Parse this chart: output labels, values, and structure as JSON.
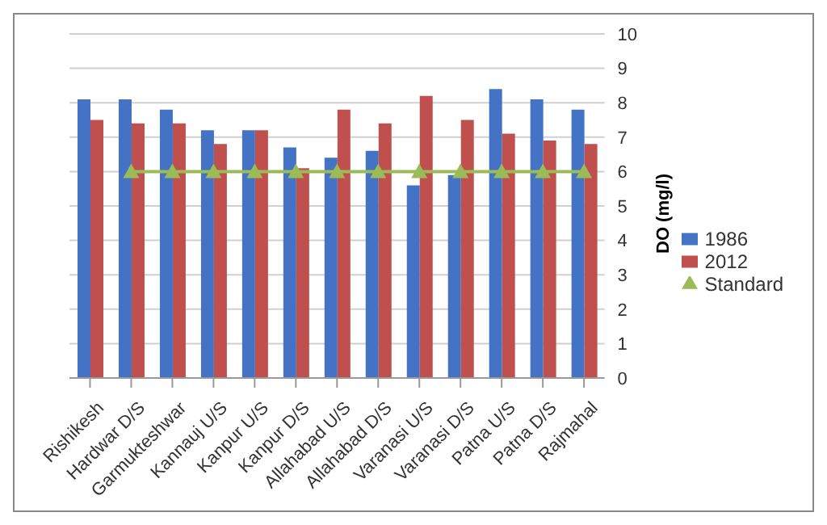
{
  "chart_data": {
    "type": "bar",
    "ylabel": "DO (mg/l)",
    "categories": [
      "Rishikesh",
      "Hardwar D/S",
      "Garmukteshwar",
      "Kannauj U/S",
      "Kanpur U/S",
      "Kanpur D/S",
      "Allahabad U/S",
      "Allahabad D/S",
      "Varanasi U/S",
      "Varanasi D/S",
      "Patna U/S",
      "Patna D/S",
      "Rajmahal"
    ],
    "series": [
      {
        "name": "1986",
        "color": "#4472c4",
        "values": [
          8.1,
          8.1,
          7.8,
          7.2,
          7.2,
          6.7,
          6.4,
          6.6,
          5.6,
          5.9,
          8.4,
          8.1,
          7.8
        ]
      },
      {
        "name": "2012",
        "color": "#c0504d",
        "values": [
          7.5,
          7.4,
          7.4,
          6.8,
          7.2,
          6.1,
          7.8,
          7.4,
          8.2,
          7.5,
          7.1,
          6.9,
          6.8
        ]
      },
      {
        "name": "Standard",
        "type": "line",
        "color": "#9bbb59",
        "marker": "triangle",
        "values": [
          null,
          6,
          6,
          6,
          6,
          6,
          6,
          6,
          6,
          6,
          6,
          6,
          6
        ]
      }
    ],
    "ylim": [
      0,
      10
    ],
    "yticks": [
      0,
      1,
      2,
      3,
      4,
      5,
      6,
      7,
      8,
      9,
      10
    ],
    "grid": "y",
    "legend": "right"
  }
}
